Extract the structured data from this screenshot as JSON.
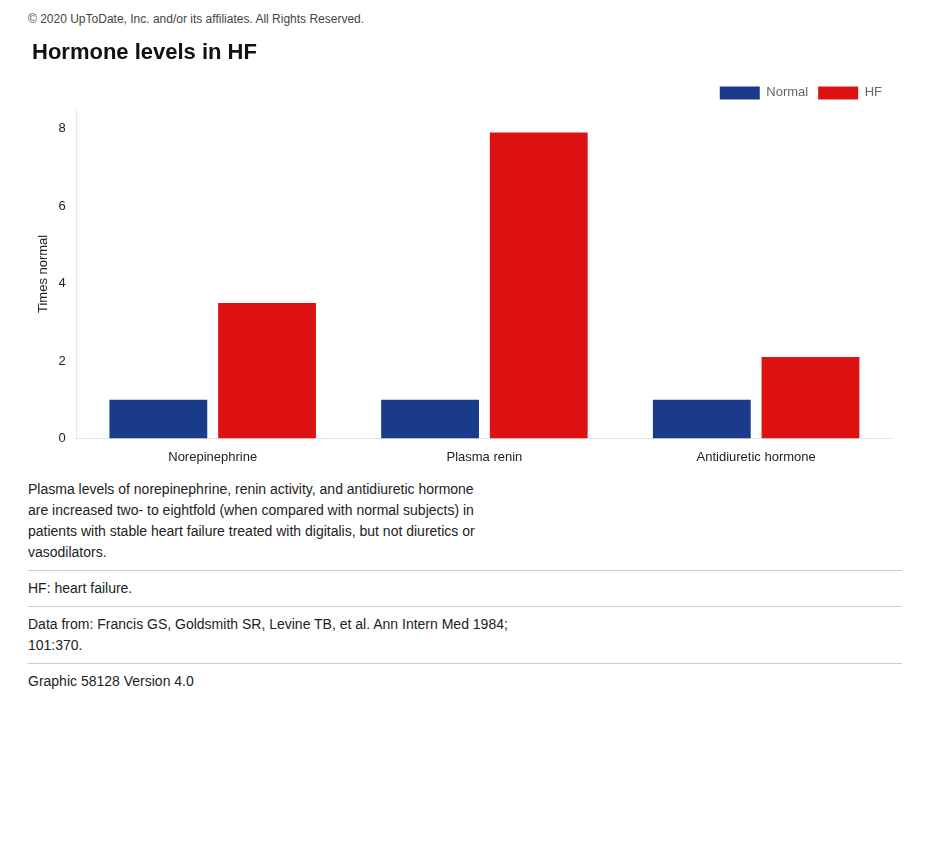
{
  "chart_data": {
    "type": "bar",
    "title": "Hormone levels in HF",
    "ylabel": "Times normal",
    "categories": [
      "Norepinephrine",
      "Plasma renin",
      "Antidiuretic hormone"
    ],
    "series": [
      {
        "name": "Normal",
        "color": "#1a3a8a",
        "values": [
          1.0,
          1.0,
          1.0
        ]
      },
      {
        "name": "HF",
        "color": "#dd1111",
        "values": [
          3.5,
          7.9,
          2.1
        ]
      }
    ],
    "ylim": [
      0,
      8.5
    ],
    "yticks": [
      0,
      2,
      4,
      6,
      8
    ],
    "grid": false,
    "legend": "upper right",
    "annotations": [
      "© 2020 UpToDate, Inc. and/or its affiliates. All Rights Reserved.",
      "Plasma levels of norepinephrine, renin activity, and antidiuretic hormone\nare increased two- to eightfold (when compared with normal subjects) in\npatients with stable heart failure treated with digitalis, but not diuretics or\nvasodilators.",
      "HF: heart failure.",
      "Data from: Francis GS, Goldsmith SR, Levine TB, et al. Ann Intern Med 1984;\n101:370.",
      "Graphic 58128 Version 4.0"
    ]
  }
}
